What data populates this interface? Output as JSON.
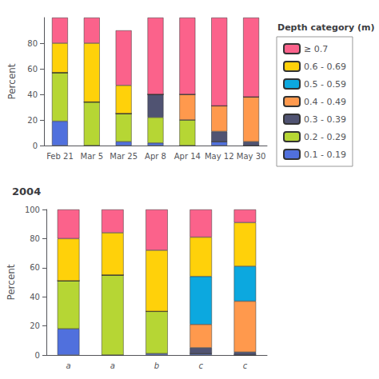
{
  "chart_data": [
    {
      "type": "bar",
      "stacked": true,
      "grid": false,
      "legend": "right",
      "legend_title": "Depth category (m)",
      "ylabel": "Percent",
      "categories": [
        "Feb 21",
        "Mar 5",
        "Mar 25",
        "Apr 8",
        "Apr 14",
        "May 12",
        "May 30"
      ],
      "ylim": [
        0,
        100
      ],
      "yticks": [
        0,
        20,
        40,
        60,
        80
      ],
      "series": [
        {
          "name": "0.1 - 0.19",
          "values": [
            19,
            0,
            3,
            2,
            0,
            3,
            0
          ]
        },
        {
          "name": "0.2 - 0.29",
          "values": [
            38,
            34,
            22,
            20,
            20,
            0,
            0
          ]
        },
        {
          "name": "0.3 - 0.39",
          "values": [
            0,
            0,
            0,
            18,
            0,
            8,
            3
          ]
        },
        {
          "name": "0.4 - 0.49",
          "values": [
            0,
            0,
            0,
            0,
            20,
            20,
            35
          ]
        },
        {
          "name": "0.5 - 0.59",
          "values": [
            0,
            0,
            0,
            0,
            0,
            0,
            0
          ]
        },
        {
          "name": "0.6 - 0.69",
          "values": [
            23,
            46,
            22,
            0,
            0,
            0,
            0
          ]
        },
        {
          "name": "≥ 0.7",
          "values": [
            20,
            20,
            43,
            60,
            60,
            69,
            62
          ]
        }
      ]
    },
    {
      "type": "bar",
      "stacked": true,
      "grid": false,
      "title": "2004",
      "ylabel": "Percent",
      "categories": [
        "a",
        "a",
        "b",
        "c",
        "c"
      ],
      "ylim": [
        0,
        100
      ],
      "yticks": [
        0,
        20,
        40,
        60,
        80,
        100
      ],
      "series": [
        {
          "name": "0.1 - 0.19",
          "values": [
            18,
            0,
            1,
            1,
            0
          ]
        },
        {
          "name": "0.2 - 0.29",
          "values": [
            33,
            55,
            29,
            0,
            0
          ]
        },
        {
          "name": "0.3 - 0.39",
          "values": [
            0,
            0,
            0,
            4,
            2
          ]
        },
        {
          "name": "0.4 - 0.49",
          "values": [
            0,
            0,
            0,
            16,
            35
          ]
        },
        {
          "name": "0.5 - 0.59",
          "values": [
            0,
            0,
            0,
            33,
            24
          ]
        },
        {
          "name": "0.6 - 0.69",
          "values": [
            29,
            29,
            42,
            27,
            30
          ]
        },
        {
          "name": "≥ 0.7",
          "values": [
            20,
            16,
            28,
            19,
            9
          ]
        }
      ]
    }
  ]
}
